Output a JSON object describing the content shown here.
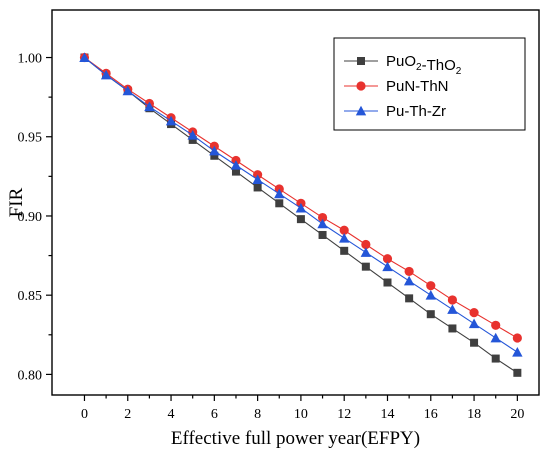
{
  "chart_data": {
    "type": "line",
    "xlabel": "Effective full power year(EFPY)",
    "ylabel": "FIR",
    "xlim": [
      -1.5,
      21
    ],
    "ylim": [
      0.787,
      1.03
    ],
    "xticks": [
      0,
      2,
      4,
      6,
      8,
      10,
      12,
      14,
      16,
      18,
      20
    ],
    "yticks": [
      0.8,
      0.85,
      0.9,
      0.95,
      1.0
    ],
    "ytick_labels": [
      "0.80",
      "0.85",
      "0.90",
      "0.95",
      "1.00"
    ],
    "grid": false,
    "legend_position": "top-right",
    "x": [
      0,
      1,
      2,
      3,
      4,
      5,
      6,
      7,
      8,
      9,
      10,
      11,
      12,
      13,
      14,
      15,
      16,
      17,
      18,
      19,
      20
    ],
    "series": [
      {
        "name": "PuO2-ThO2",
        "name_main": [
          "PuO",
          "-ThO"
        ],
        "name_sub": [
          "2",
          "2"
        ],
        "marker": "square",
        "color": "#3f3f3f",
        "values": [
          1.0,
          0.989,
          0.979,
          0.968,
          0.958,
          0.948,
          0.938,
          0.928,
          0.918,
          0.908,
          0.898,
          0.888,
          0.878,
          0.868,
          0.858,
          0.848,
          0.838,
          0.829,
          0.82,
          0.81,
          0.801
        ]
      },
      {
        "name": "PuN-ThN",
        "marker": "circle",
        "color": "#e8322e",
        "values": [
          1.0,
          0.99,
          0.98,
          0.971,
          0.962,
          0.953,
          0.944,
          0.935,
          0.926,
          0.917,
          0.908,
          0.899,
          0.891,
          0.882,
          0.873,
          0.865,
          0.856,
          0.847,
          0.839,
          0.831,
          0.823
        ]
      },
      {
        "name": "Pu-Th-Zr",
        "marker": "triangle",
        "color": "#2456d8",
        "values": [
          1.0,
          0.989,
          0.979,
          0.969,
          0.96,
          0.951,
          0.941,
          0.932,
          0.923,
          0.914,
          0.905,
          0.895,
          0.886,
          0.877,
          0.868,
          0.859,
          0.85,
          0.841,
          0.832,
          0.823,
          0.814
        ]
      }
    ]
  }
}
